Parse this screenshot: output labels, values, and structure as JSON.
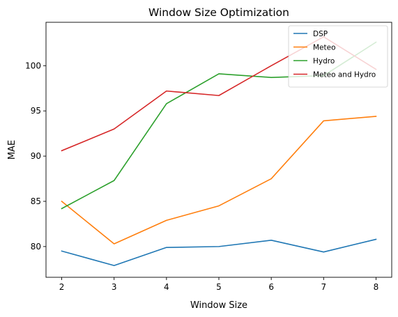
{
  "chart_data": {
    "type": "line",
    "title": "Window Size Optimization",
    "xlabel": "Window Size",
    "ylabel": "MAE",
    "x": [
      2,
      3,
      4,
      5,
      6,
      7,
      8
    ],
    "xlim": [
      1.7,
      8.3
    ],
    "ylim": [
      76.6,
      104.8
    ],
    "xticks": [
      2,
      3,
      4,
      5,
      6,
      7,
      8
    ],
    "yticks": [
      80,
      85,
      90,
      95,
      100
    ],
    "grid": false,
    "legend_position": "top-right",
    "series": [
      {
        "name": "DSP",
        "color": "#1f77b4",
        "values": [
          79.5,
          77.9,
          79.9,
          80.0,
          80.7,
          79.4,
          80.8
        ]
      },
      {
        "name": "Meteo",
        "color": "#ff7f0e",
        "values": [
          85.0,
          80.3,
          82.9,
          84.5,
          87.5,
          93.9,
          94.4
        ]
      },
      {
        "name": "Hydro",
        "color": "#2ca02c",
        "values": [
          84.2,
          87.3,
          95.8,
          99.1,
          98.7,
          98.9,
          102.6
        ]
      },
      {
        "name": "Meteo and Hydro",
        "color": "#d62728",
        "values": [
          90.6,
          93.0,
          97.2,
          96.7,
          100.0,
          103.2,
          99.6
        ]
      }
    ]
  }
}
